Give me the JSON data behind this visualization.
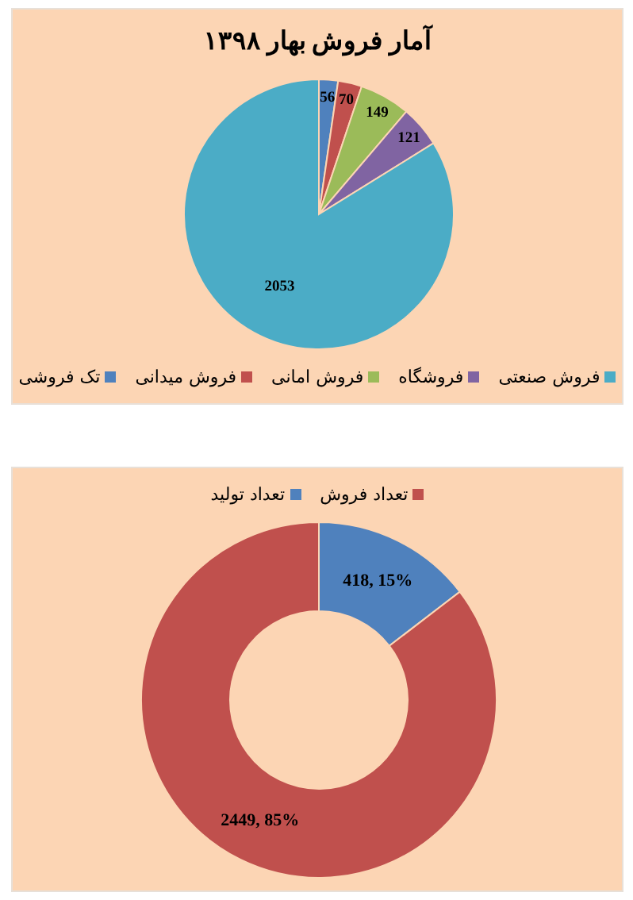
{
  "chart_data": [
    {
      "type": "pie",
      "title": "آمار فروش بهار ۱۳۹۸",
      "categories": [
        "تک فروشی",
        "فروش میدانی",
        "فروش امانی",
        "فروشگاه",
        "فروش صنعتی"
      ],
      "values": [
        56,
        70,
        149,
        121,
        2053
      ],
      "colors": [
        "#4f81bd",
        "#c0504d",
        "#9bbb59",
        "#8064a2",
        "#4bacc6"
      ],
      "data_labels": true,
      "legend": "bottom"
    },
    {
      "type": "donut",
      "categories": [
        "تعداد تولید",
        "تعداد فروش"
      ],
      "values": [
        418,
        2449
      ],
      "colors": [
        "#4f81bd",
        "#c0504d"
      ],
      "value_labels": [
        "418, 15%",
        "2449, 85%"
      ],
      "legend": "top"
    }
  ]
}
